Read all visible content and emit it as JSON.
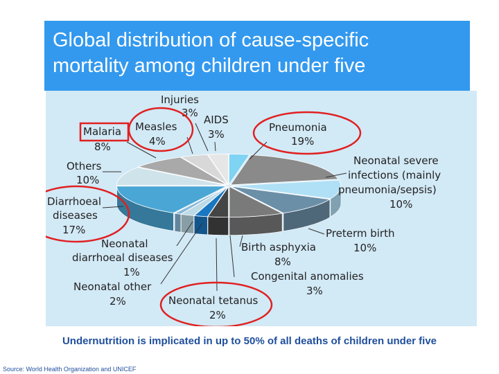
{
  "title": {
    "line1": "Global distribution of cause-specific",
    "line2": "mortality among children under five"
  },
  "footnote": "Undernutrition is implicated in up to 50% of all deaths of children under five",
  "source": "Source: World Health Organization and UNICEF",
  "chart_data": {
    "type": "pie",
    "style": "3d-exploded",
    "unit": "%",
    "slices": [
      {
        "label": "AIDS",
        "value": 3,
        "color": "#7fd3f3",
        "highlight": "none"
      },
      {
        "label": "Pneumonia",
        "value": 19,
        "color": "#8a8a8a",
        "highlight": "circle"
      },
      {
        "label": "Neonatal severe infections (mainly pneumonia/sepsis)",
        "value": 10,
        "color": "#b0e0f6",
        "highlight": "none"
      },
      {
        "label": "Preterm birth",
        "value": 10,
        "color": "#6c8fa8",
        "highlight": "none"
      },
      {
        "label": "Birth asphyxia",
        "value": 8,
        "color": "#7a7a7a",
        "highlight": "none"
      },
      {
        "label": "Congenital anomalies",
        "value": 3,
        "color": "#454545",
        "highlight": "none"
      },
      {
        "label": "Neonatal tetanus",
        "value": 2,
        "color": "#1a78c2",
        "highlight": "circle"
      },
      {
        "label": "Neonatal other",
        "value": 2,
        "color": "#bddbe6",
        "highlight": "none"
      },
      {
        "label": "Neonatal diarrhoeal diseases",
        "value": 1,
        "color": "#8ab8d8",
        "highlight": "none"
      },
      {
        "label": "Diarrhoeal diseases",
        "value": 17,
        "color": "#4aa6d4",
        "highlight": "circle"
      },
      {
        "label": "Others",
        "value": 10,
        "color": "#cfe3ea",
        "highlight": "none"
      },
      {
        "label": "Malaria",
        "value": 8,
        "color": "#a9a9a9",
        "highlight": "box"
      },
      {
        "label": "Measles",
        "value": 4,
        "color": "#d8d8d8",
        "highlight": "circle"
      },
      {
        "label": "Injuries",
        "value": 3,
        "color": "#e6e6e6",
        "highlight": "none"
      }
    ]
  },
  "labels": {
    "injuries": {
      "name": "Injuries",
      "pct": "3%"
    },
    "aids": {
      "name": "AIDS",
      "pct": "3%"
    },
    "measles": {
      "name": "Measles",
      "pct": "4%"
    },
    "malaria": {
      "name": "Malaria",
      "pct": "8%"
    },
    "pneumonia": {
      "name": "Pneumonia",
      "pct": "19%"
    },
    "others": {
      "name": "Others",
      "pct": "10%"
    },
    "neonatal_severe": {
      "line1": "Neonatal severe",
      "line2": "infections (mainly",
      "line3": "pneumonia/sepsis)",
      "pct": "10%"
    },
    "diarrhoeal": {
      "line1": "Diarrhoeal",
      "line2": "diseases",
      "pct": "17%"
    },
    "preterm": {
      "name": "Preterm birth",
      "pct": "10%"
    },
    "neonatal_diarrhoeal": {
      "line1": "Neonatal",
      "line2": "diarrhoeal diseases",
      "pct": "1%"
    },
    "birth_asphyxia": {
      "name": "Birth asphyxia",
      "pct": "8%"
    },
    "neonatal_other": {
      "name": "Neonatal other",
      "pct": "2%"
    },
    "congenital": {
      "name": "Congenital anomalies",
      "pct": "3%"
    },
    "neonatal_tetanus": {
      "name": "Neonatal tetanus",
      "pct": "2%"
    }
  }
}
